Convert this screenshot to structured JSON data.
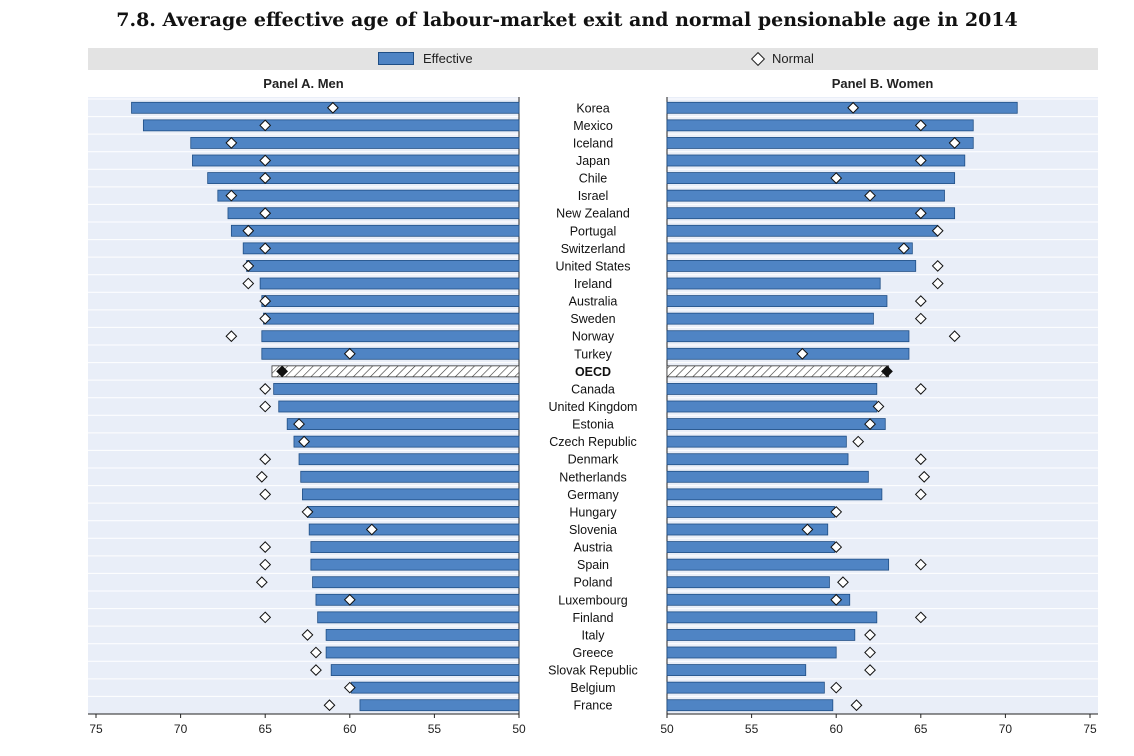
{
  "chart_data": {
    "type": "bar",
    "title": "7.8. Average effective age of labour-market exit and normal pensionable age in 2014",
    "legend": [
      {
        "label": "Effective",
        "marker": "bar",
        "color": "#4f84c4"
      },
      {
        "label": "Normal",
        "marker": "diamond",
        "color": "#ffffff"
      }
    ],
    "legend_placement": "top",
    "highlight": "OECD",
    "categories": [
      "Korea",
      "Mexico",
      "Iceland",
      "Japan",
      "Chile",
      "Israel",
      "New Zealand",
      "Portugal",
      "Switzerland",
      "United States",
      "Ireland",
      "Australia",
      "Sweden",
      "Norway",
      "Turkey",
      "OECD",
      "Canada",
      "United Kingdom",
      "Estonia",
      "Czech Republic",
      "Denmark",
      "Netherlands",
      "Germany",
      "Hungary",
      "Slovenia",
      "Austria",
      "Spain",
      "Poland",
      "Luxembourg",
      "Finland",
      "Italy",
      "Greece",
      "Slovak Republic",
      "Belgium",
      "France"
    ],
    "panels": [
      {
        "title": "Panel A. Men",
        "xlim": [
          75,
          50
        ],
        "ticks": [
          75,
          70,
          65,
          60,
          55,
          50
        ],
        "series": [
          {
            "name": "Effective",
            "values": [
              72.9,
              72.2,
              69.4,
              69.3,
              68.4,
              67.8,
              67.2,
              67.0,
              66.3,
              66.1,
              65.3,
              65.2,
              65.1,
              65.2,
              65.2,
              64.6,
              64.5,
              64.2,
              63.7,
              63.3,
              63.0,
              62.9,
              62.8,
              62.5,
              62.4,
              62.3,
              62.3,
              62.2,
              62.0,
              61.9,
              61.4,
              61.4,
              61.1,
              59.9,
              59.4
            ]
          },
          {
            "name": "Normal",
            "values": [
              61,
              65,
              67,
              65,
              65,
              67,
              65,
              66,
              65,
              66,
              66,
              65,
              65,
              67,
              60,
              64,
              65,
              65,
              63,
              62.7,
              65,
              65.2,
              65,
              62.5,
              58.7,
              65,
              65,
              65.2,
              60,
              65,
              62.5,
              62,
              62,
              60,
              61.2
            ]
          }
        ]
      },
      {
        "title": "Panel B. Women",
        "xlim": [
          50,
          75
        ],
        "ticks": [
          50,
          55,
          60,
          65,
          70,
          75
        ],
        "series": [
          {
            "name": "Effective",
            "values": [
              70.7,
              68.1,
              68.1,
              67.6,
              67.0,
              66.4,
              67.0,
              66.0,
              64.5,
              64.7,
              62.6,
              63.0,
              62.2,
              64.3,
              64.3,
              63.1,
              62.4,
              62.4,
              62.9,
              60.6,
              60.7,
              61.9,
              62.7,
              59.9,
              59.5,
              59.9,
              63.1,
              59.6,
              60.8,
              62.4,
              61.1,
              60.0,
              58.2,
              59.3,
              59.8
            ]
          },
          {
            "name": "Normal",
            "values": [
              61,
              65,
              67,
              65,
              60,
              62,
              65,
              66,
              64,
              66,
              66,
              65,
              65,
              67,
              58,
              63,
              65,
              62.5,
              62,
              61.3,
              65,
              65.2,
              65,
              60,
              58.3,
              60,
              65,
              60.4,
              60,
              65,
              62,
              62,
              62,
              60,
              61.2
            ]
          }
        ]
      }
    ]
  }
}
